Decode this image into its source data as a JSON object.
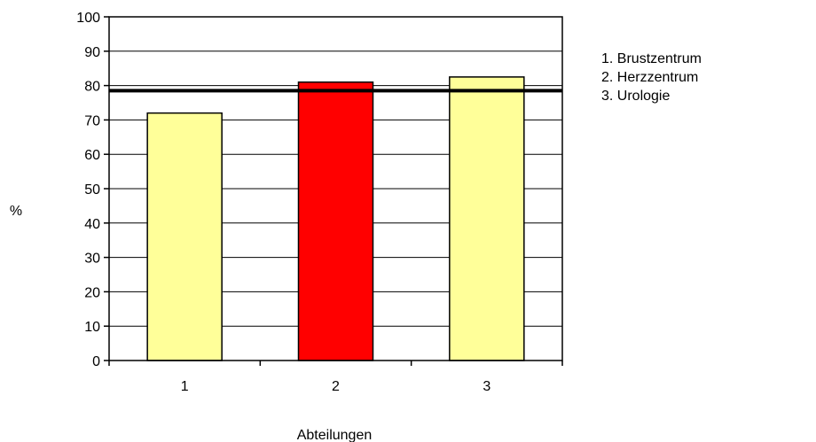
{
  "chart_data": {
    "type": "bar",
    "title": "",
    "xlabel": "Abteilungen",
    "ylabel": "%",
    "categories": [
      "1",
      "2",
      "3"
    ],
    "values": [
      72,
      81,
      82.5
    ],
    "bar_colors": [
      "#ffff99",
      "#ff0000",
      "#ffff99"
    ],
    "ylim": [
      0,
      100
    ],
    "yticks": [
      0,
      10,
      20,
      30,
      40,
      50,
      60,
      70,
      80,
      90,
      100
    ],
    "grid": true,
    "reference_line": {
      "value": 78.5,
      "color": "#000000"
    },
    "legend": {
      "placement": "top-right",
      "entries": [
        "1. Brustzentrum",
        "2. Herzzentrum",
        "3. Urologie"
      ]
    }
  }
}
